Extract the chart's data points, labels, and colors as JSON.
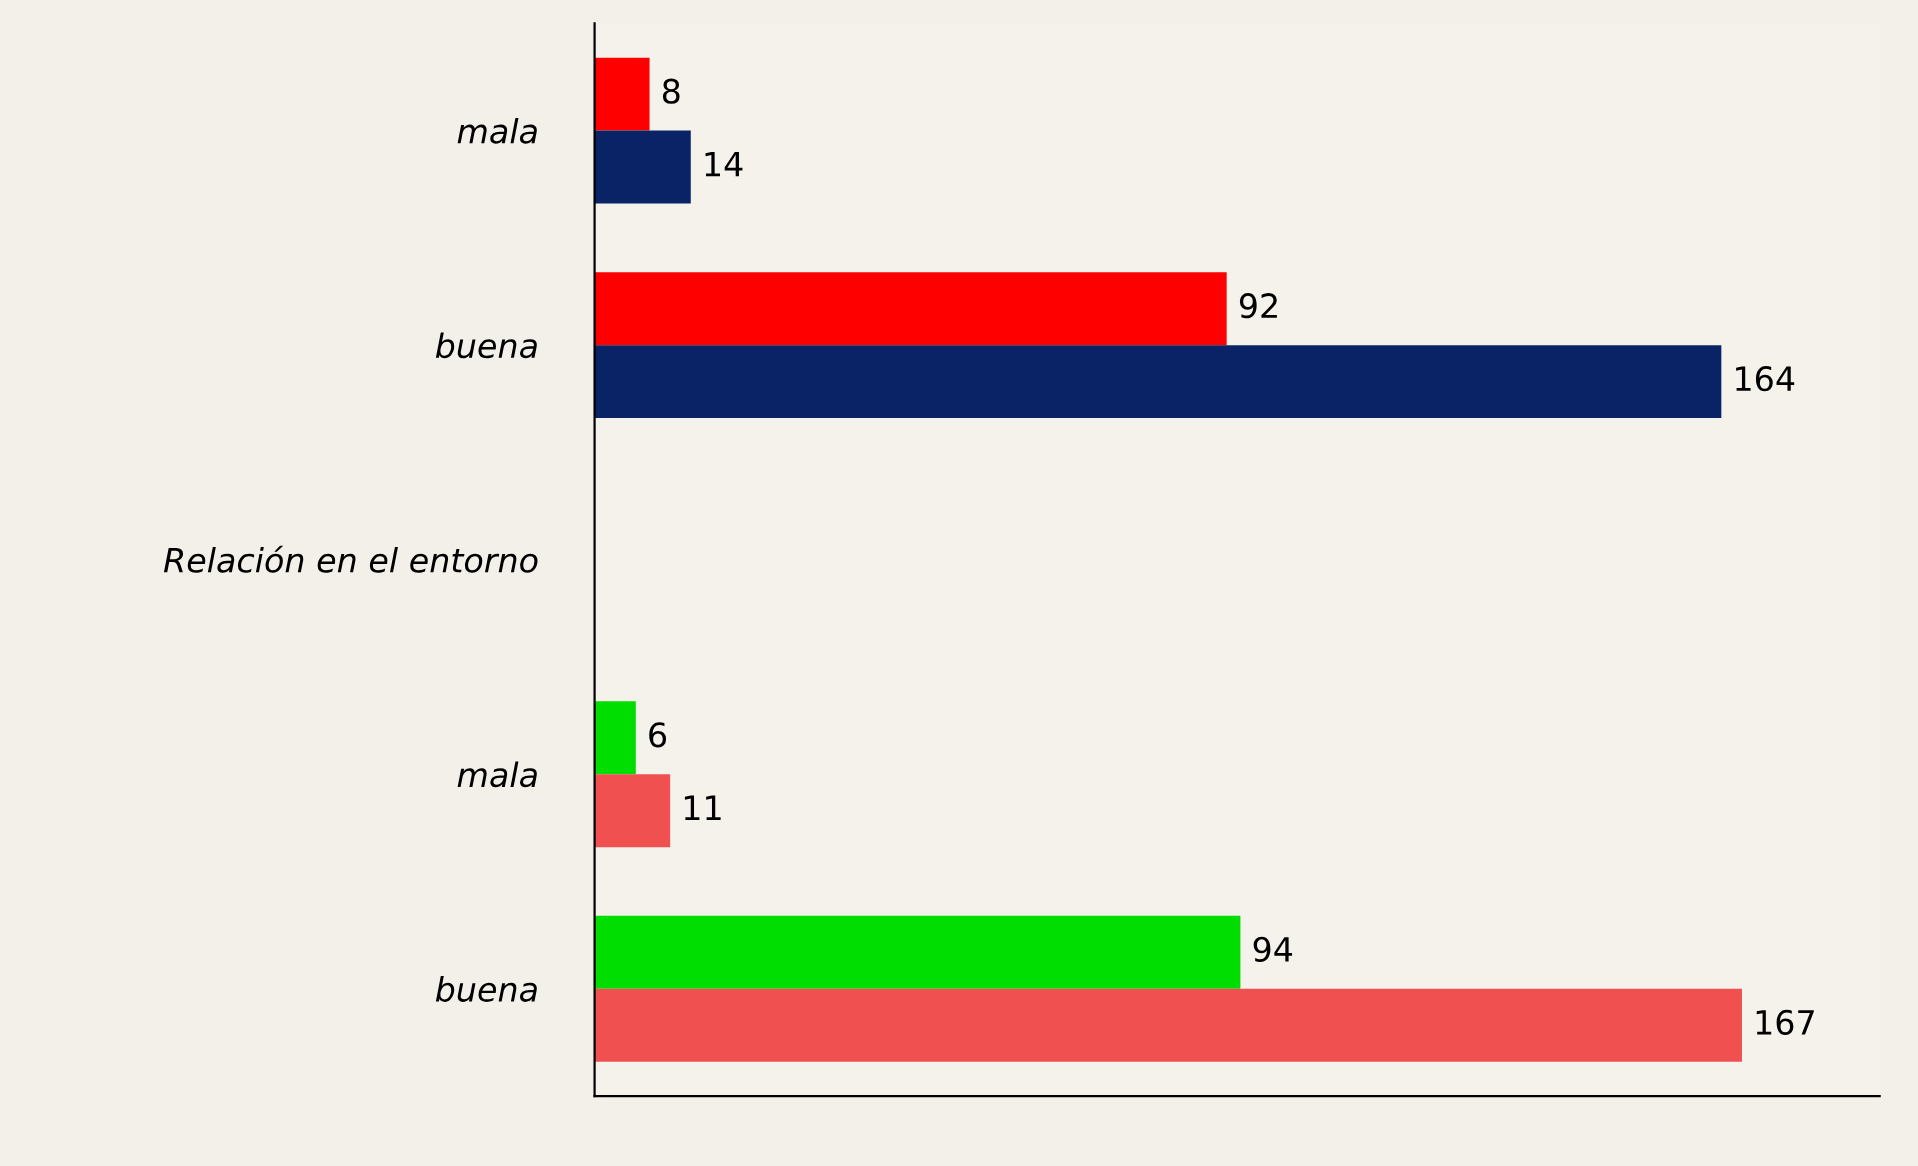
{
  "chart_data": {
    "type": "bar",
    "orientation": "horizontal",
    "categories": [
      "mala",
      "buena",
      "Relación en el entorno",
      "mala",
      "buena"
    ],
    "series": [
      {
        "color": "#ff0000",
        "values": [
          8,
          92,
          null,
          null,
          null
        ]
      },
      {
        "color": "#0a2366",
        "values": [
          14,
          164,
          null,
          null,
          null
        ]
      },
      {
        "color": "#00dd00",
        "values": [
          null,
          null,
          null,
          6,
          94
        ]
      },
      {
        "color": "#f05050",
        "values": [
          null,
          null,
          null,
          11,
          167
        ]
      }
    ],
    "data_labels": true,
    "tick_labels": "y",
    "grid": false,
    "legend": false
  }
}
